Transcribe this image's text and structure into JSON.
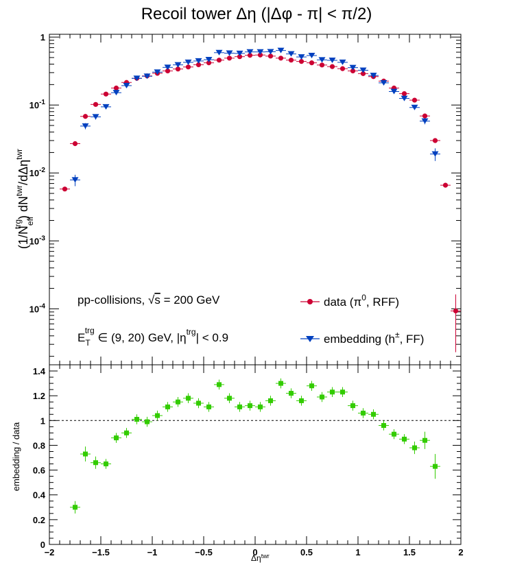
{
  "title": "Recoil tower Δη (|Δφ - π| < π/2)",
  "chart_data": [
    {
      "type": "scatter",
      "panel": "top",
      "yscale": "log",
      "xlim": [
        -2,
        2
      ],
      "ylim": [
        1.5e-05,
        1.1
      ],
      "ylabel": "(1/N_eff^trg) dN^twr/dΔη^twr",
      "ytick_labels": [
        "10^-4",
        "10^-3",
        "10^-2",
        "10^-1",
        "1"
      ],
      "legend_position": "bottom-right",
      "annotations": [
        "pp-collisions, √s = 200 GeV",
        "E_T^trg ∈ (9, 20) GeV, |η^trg| < 0.9"
      ],
      "series": [
        {
          "name": "data (π⁰, RFF)",
          "color": "#cc0033",
          "marker": "circle",
          "x": [
            -1.85,
            -1.75,
            -1.65,
            -1.55,
            -1.45,
            -1.35,
            -1.25,
            -1.15,
            -1.05,
            -0.95,
            -0.85,
            -0.75,
            -0.65,
            -0.55,
            -0.45,
            -0.35,
            -0.25,
            -0.15,
            -0.05,
            0.05,
            0.15,
            0.25,
            0.35,
            0.45,
            0.55,
            0.65,
            0.75,
            0.85,
            0.95,
            1.05,
            1.15,
            1.25,
            1.35,
            1.45,
            1.55,
            1.65,
            1.75,
            1.85,
            1.95
          ],
          "y": [
            0.0058,
            0.027,
            0.068,
            0.102,
            0.145,
            0.178,
            0.215,
            0.247,
            0.268,
            0.293,
            0.318,
            0.339,
            0.363,
            0.392,
            0.418,
            0.458,
            0.49,
            0.515,
            0.54,
            0.545,
            0.525,
            0.49,
            0.458,
            0.438,
            0.418,
            0.388,
            0.368,
            0.343,
            0.318,
            0.29,
            0.262,
            0.225,
            0.178,
            0.147,
            0.118,
            0.069,
            0.03,
            0.0066,
            9.3e-05
          ],
          "yerr": [
            0.0003,
            0.0008,
            0.0015,
            0.002,
            0.003,
            0.003,
            0.004,
            0.004,
            0.004,
            0.004,
            0.005,
            0.005,
            0.005,
            0.005,
            0.006,
            0.006,
            0.006,
            0.006,
            0.006,
            0.006,
            0.006,
            0.006,
            0.006,
            0.006,
            0.006,
            0.005,
            0.005,
            0.005,
            0.005,
            0.004,
            0.004,
            0.004,
            0.003,
            0.003,
            0.003,
            0.0015,
            0.001,
            0.0003,
            7e-05
          ]
        },
        {
          "name": "embedding (h±, FF)",
          "color": "#0040bf",
          "marker": "triangle-down",
          "x": [
            -1.75,
            -1.65,
            -1.55,
            -1.45,
            -1.35,
            -1.25,
            -1.15,
            -1.05,
            -0.95,
            -0.85,
            -0.75,
            -0.65,
            -0.55,
            -0.45,
            -0.35,
            -0.25,
            -0.15,
            -0.05,
            0.05,
            0.15,
            0.25,
            0.35,
            0.45,
            0.55,
            0.65,
            0.75,
            0.85,
            0.95,
            1.05,
            1.15,
            1.25,
            1.35,
            1.45,
            1.55,
            1.65,
            1.75
          ],
          "y": [
            0.0079,
            0.049,
            0.067,
            0.094,
            0.152,
            0.193,
            0.247,
            0.265,
            0.305,
            0.358,
            0.39,
            0.425,
            0.445,
            0.465,
            0.59,
            0.58,
            0.575,
            0.605,
            0.605,
            0.608,
            0.635,
            0.565,
            0.51,
            0.535,
            0.462,
            0.455,
            0.425,
            0.355,
            0.325,
            0.272,
            0.212,
            0.158,
            0.125,
            0.092,
            0.058,
            0.019
          ],
          "yerr": [
            0.0015,
            0.005,
            0.006,
            0.007,
            0.01,
            0.012,
            0.014,
            0.014,
            0.015,
            0.016,
            0.017,
            0.018,
            0.018,
            0.019,
            0.021,
            0.021,
            0.021,
            0.022,
            0.022,
            0.022,
            0.023,
            0.021,
            0.02,
            0.02,
            0.019,
            0.019,
            0.018,
            0.016,
            0.015,
            0.013,
            0.011,
            0.009,
            0.008,
            0.007,
            0.006,
            0.004
          ]
        }
      ]
    },
    {
      "type": "scatter",
      "panel": "bottom",
      "xlim": [
        -2,
        2
      ],
      "ylim": [
        0,
        1.45
      ],
      "xlabel": "Δη^twr",
      "ylabel": "embedding / data",
      "xtick_labels": [
        "−2",
        "−1.5",
        "−1",
        "−0.5",
        "0",
        "0.5",
        "1",
        "1.5",
        "2"
      ],
      "ytick_labels": [
        "0",
        "0.2",
        "0.4",
        "0.6",
        "0.8",
        "1",
        "1.2",
        "1.4"
      ],
      "reference_line": 1,
      "series": [
        {
          "name": "embedding / data",
          "color": "#33cc00",
          "marker": "square",
          "x": [
            -1.75,
            -1.65,
            -1.55,
            -1.45,
            -1.35,
            -1.25,
            -1.15,
            -1.05,
            -0.95,
            -0.85,
            -0.75,
            -0.65,
            -0.55,
            -0.45,
            -0.35,
            -0.25,
            -0.15,
            -0.05,
            0.05,
            0.15,
            0.25,
            0.35,
            0.45,
            0.55,
            0.65,
            0.75,
            0.85,
            0.95,
            1.05,
            1.15,
            1.25,
            1.35,
            1.45,
            1.55,
            1.65,
            1.75
          ],
          "y": [
            0.3,
            0.73,
            0.66,
            0.65,
            0.86,
            0.9,
            1.01,
            0.99,
            1.04,
            1.11,
            1.15,
            1.18,
            1.14,
            1.11,
            1.29,
            1.18,
            1.11,
            1.12,
            1.11,
            1.16,
            1.3,
            1.22,
            1.16,
            1.28,
            1.19,
            1.23,
            1.23,
            1.12,
            1.06,
            1.05,
            0.96,
            0.89,
            0.85,
            0.78,
            0.84,
            0.63
          ],
          "yerr": [
            0.05,
            0.06,
            0.05,
            0.04,
            0.04,
            0.04,
            0.04,
            0.04,
            0.04,
            0.04,
            0.04,
            0.04,
            0.04,
            0.04,
            0.04,
            0.04,
            0.04,
            0.04,
            0.04,
            0.04,
            0.04,
            0.04,
            0.04,
            0.04,
            0.04,
            0.04,
            0.04,
            0.04,
            0.04,
            0.04,
            0.04,
            0.04,
            0.04,
            0.05,
            0.07,
            0.1
          ]
        }
      ]
    }
  ]
}
